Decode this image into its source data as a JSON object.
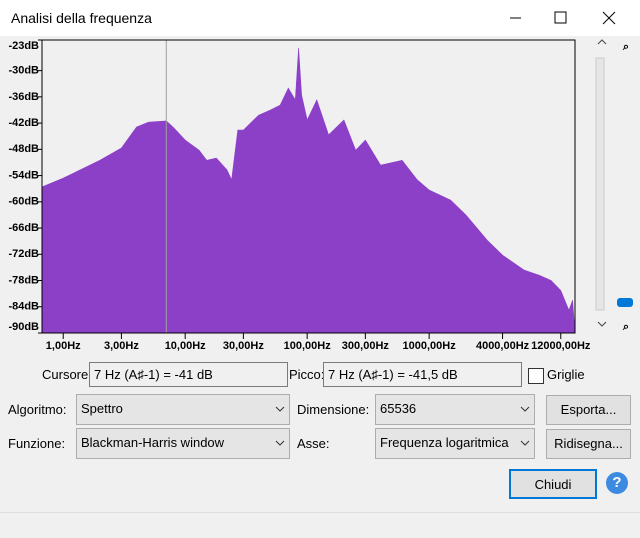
{
  "window": {
    "title": "Analisi della frequenza"
  },
  "plot": {
    "log_x": true,
    "xlim": [
      0.67,
      15700
    ],
    "ylim": [
      -90,
      -23
    ],
    "color": "#8c40c8",
    "cursor_x": 7,
    "yticks": [
      {
        "value": -23,
        "label": "-23dB"
      },
      {
        "value": -30,
        "label": "-30dB"
      },
      {
        "value": -36,
        "label": "-36dB"
      },
      {
        "value": -42,
        "label": "-42dB"
      },
      {
        "value": -48,
        "label": "-48dB"
      },
      {
        "value": -54,
        "label": "-54dB"
      },
      {
        "value": -60,
        "label": "-60dB"
      },
      {
        "value": -66,
        "label": "-66dB"
      },
      {
        "value": -72,
        "label": "-72dB"
      },
      {
        "value": -78,
        "label": "-78dB"
      },
      {
        "value": -84,
        "label": "-84dB"
      },
      {
        "value": -90,
        "label": "-90dB"
      }
    ],
    "xticks": [
      {
        "value": 1,
        "label": "1,00Hz"
      },
      {
        "value": 3,
        "label": "3,00Hz"
      },
      {
        "value": 10,
        "label": "10,00Hz"
      },
      {
        "value": 30,
        "label": "30,00Hz"
      },
      {
        "value": 100,
        "label": "100,00Hz"
      },
      {
        "value": 300,
        "label": "300,00Hz"
      },
      {
        "value": 1000,
        "label": "1000,00Hz"
      },
      {
        "value": 4000,
        "label": "4000,00Hz"
      },
      {
        "value": 12000,
        "label": "12000,00Hz"
      }
    ],
    "x": [
      0.67,
      1,
      2,
      3,
      4,
      5,
      7,
      8,
      10,
      13,
      15,
      18,
      22,
      24,
      27,
      30,
      40,
      50,
      60,
      70,
      80,
      85,
      90,
      100,
      120,
      150,
      200,
      250,
      300,
      400,
      600,
      800,
      1000,
      1500,
      2000,
      3000,
      4000,
      6000,
      8000,
      10000,
      12000,
      14000,
      15000,
      15700
    ],
    "values": [
      -56.6,
      -54.6,
      -50.5,
      -47.7,
      -42.9,
      -41.8,
      -41.5,
      -43,
      -45.9,
      -48.2,
      -50.5,
      -50,
      -52.7,
      -55,
      -43.6,
      -43.6,
      -40.2,
      -39,
      -37.9,
      -34,
      -36.7,
      -24.8,
      -35.6,
      -41.3,
      -36.7,
      -44.7,
      -41.3,
      -48.2,
      -45.9,
      -51.6,
      -50.5,
      -55,
      -57.3,
      -59.6,
      -63,
      -68.8,
      -72.2,
      -75.6,
      -76.8,
      -78,
      -80.3,
      -84.8,
      -82.5,
      -90
    ]
  },
  "controls": {
    "cursor_label": "Cursore:",
    "cursor_value": "7 Hz (A♯-1) = -41 dB",
    "peak_label": "Picco:",
    "peak_value": "7 Hz (A♯-1) = -41,5 dB",
    "grid_label": "Griglie",
    "grid": false,
    "algorithm_label": "Algoritmo:",
    "algorithm": "Spettro",
    "size_label": "Dimensione:",
    "size": "65536",
    "function_label": "Funzione:",
    "function": "Blackman-Harris window",
    "axis_label": "Asse:",
    "axis": "Frequenza logaritmica",
    "export": "Esporta...",
    "replot": "Ridisegna...",
    "close": "Chiudi",
    "help": "?"
  }
}
